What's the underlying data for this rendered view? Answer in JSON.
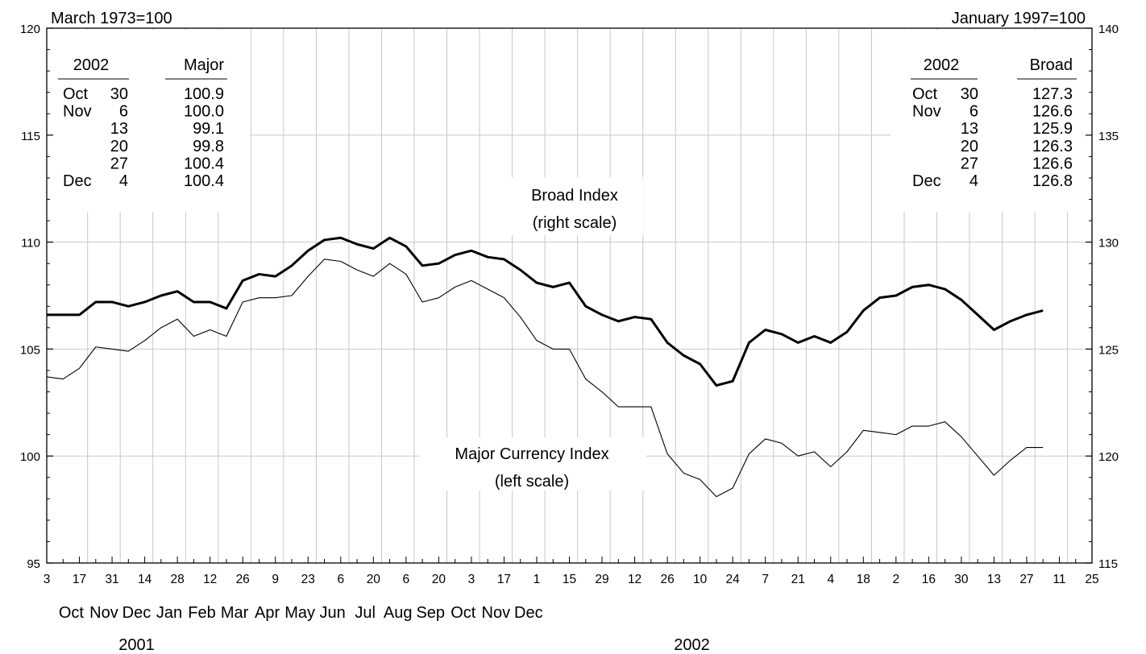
{
  "chart_data": {
    "type": "line",
    "left_unit": "March 1973=100",
    "right_unit": "January 1997=100",
    "y_left": {
      "lim": [
        95,
        120
      ],
      "ticks": [
        "95",
        "100",
        "105",
        "110",
        "115",
        "120"
      ]
    },
    "y_right": {
      "lim": [
        115,
        140
      ],
      "ticks": [
        "115",
        "120",
        "125",
        "130",
        "135",
        "140"
      ]
    },
    "x_tick_labels": [
      "3",
      "17",
      "31",
      "14",
      "28",
      "12",
      "26",
      "9",
      "23",
      "6",
      "20",
      "6",
      "20",
      "3",
      "17",
      "1",
      "15",
      "29",
      "12",
      "26",
      "10",
      "24",
      "7",
      "21",
      "4",
      "18",
      "2",
      "16",
      "30",
      "13",
      "27",
      "11",
      "25"
    ],
    "month_labels": [
      "Oct",
      "Nov",
      "Dec",
      "Jan",
      "Feb",
      "Mar",
      "Apr",
      "May",
      "Jun",
      "Jul",
      "Aug",
      "Sep",
      "Oct",
      "Nov",
      "Dec"
    ],
    "year_labels": [
      "2001",
      "2002"
    ],
    "series": [
      {
        "name": "Broad Index",
        "label_lines": [
          "Broad Index",
          "(right scale)"
        ],
        "axis": "right",
        "values": [
          126.6,
          126.6,
          126.6,
          127.2,
          127.2,
          127.0,
          127.2,
          127.5,
          127.7,
          127.2,
          127.2,
          126.9,
          128.2,
          128.5,
          128.4,
          128.9,
          129.6,
          130.1,
          130.2,
          129.9,
          129.7,
          130.2,
          129.8,
          128.9,
          129.0,
          129.4,
          129.6,
          129.3,
          129.2,
          128.7,
          128.1,
          127.9,
          128.1,
          127.0,
          126.6,
          126.3,
          126.5,
          126.4,
          125.3,
          124.7,
          124.3,
          123.3,
          123.5,
          125.3,
          125.9,
          125.7,
          125.3,
          125.6,
          125.3,
          125.8,
          126.8,
          127.4,
          127.5,
          127.9,
          128.0,
          127.8,
          127.3,
          126.6,
          125.9,
          126.3,
          126.6,
          126.8
        ]
      },
      {
        "name": "Major Currency Index",
        "label_lines": [
          "Major Currency Index",
          "(left scale)"
        ],
        "axis": "left",
        "values": [
          103.7,
          103.6,
          104.1,
          105.1,
          105.0,
          104.9,
          105.4,
          106.0,
          106.4,
          105.6,
          105.9,
          105.6,
          107.2,
          107.4,
          107.4,
          107.5,
          108.4,
          109.2,
          109.1,
          108.7,
          108.4,
          109.0,
          108.5,
          107.2,
          107.4,
          107.9,
          108.2,
          107.8,
          107.4,
          106.5,
          105.4,
          105.0,
          105.0,
          103.6,
          103.0,
          102.3,
          102.3,
          102.3,
          100.1,
          99.2,
          98.9,
          98.1,
          98.5,
          100.1,
          100.8,
          100.6,
          100.0,
          100.2,
          99.5,
          100.2,
          101.2,
          101.1,
          101.0,
          101.4,
          101.4,
          101.6,
          100.9,
          100.0,
          99.1,
          99.8,
          100.4,
          100.4
        ]
      }
    ],
    "major_table": {
      "headers": [
        "2002",
        "Major"
      ],
      "rows": [
        {
          "month": "Oct",
          "day": "30",
          "value": "100.9"
        },
        {
          "month": "Nov",
          "day": "6",
          "value": "100.0"
        },
        {
          "month": "",
          "day": "13",
          "value": "99.1"
        },
        {
          "month": "",
          "day": "20",
          "value": "99.8"
        },
        {
          "month": "",
          "day": "27",
          "value": "100.4"
        },
        {
          "month": "Dec",
          "day": "4",
          "value": "100.4"
        }
      ]
    },
    "broad_table": {
      "headers": [
        "2002",
        "Broad"
      ],
      "rows": [
        {
          "month": "Oct",
          "day": "30",
          "value": "127.3"
        },
        {
          "month": "Nov",
          "day": "6",
          "value": "126.6"
        },
        {
          "month": "",
          "day": "13",
          "value": "125.9"
        },
        {
          "month": "",
          "day": "20",
          "value": "126.3"
        },
        {
          "month": "",
          "day": "27",
          "value": "126.6"
        },
        {
          "month": "Dec",
          "day": "4",
          "value": "126.8"
        }
      ]
    },
    "grid": true,
    "legend": "none"
  }
}
